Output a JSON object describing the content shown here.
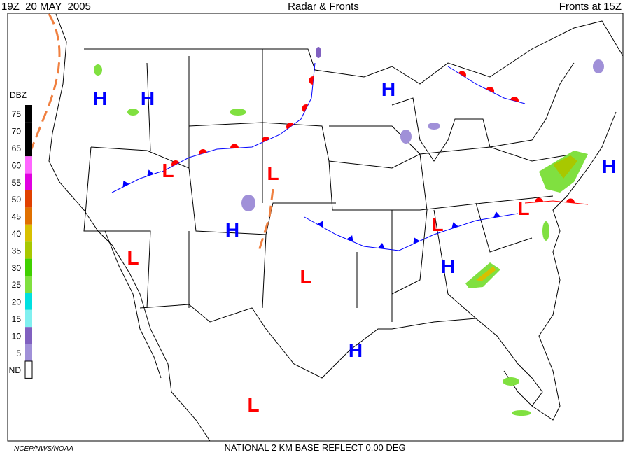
{
  "header": {
    "left": "19Z  20 MAY  2005",
    "center": "Radar & Fronts",
    "right": "Fronts at 15Z"
  },
  "legend": {
    "title": "DBZ",
    "items": [
      {
        "label": "75",
        "color": "#000000"
      },
      {
        "label": "70",
        "color": "#000000"
      },
      {
        "label": "65",
        "color": "#000000"
      },
      {
        "label": "60",
        "color": "#ff66ff"
      },
      {
        "label": "55",
        "color": "#e000e0"
      },
      {
        "label": "50",
        "color": "#e04000"
      },
      {
        "label": "45",
        "color": "#e07000"
      },
      {
        "label": "40",
        "color": "#d8c000"
      },
      {
        "label": "35",
        "color": "#a8c800"
      },
      {
        "label": "30",
        "color": "#40d000"
      },
      {
        "label": "25",
        "color": "#80e040"
      },
      {
        "label": "20",
        "color": "#00e0e0"
      },
      {
        "label": "15",
        "color": "#80f0f0"
      },
      {
        "label": "10",
        "color": "#8060c0"
      },
      {
        "label": "5",
        "color": "#a090d8"
      },
      {
        "label": "ND",
        "color": "#ffffff"
      }
    ]
  },
  "pressure_centers": [
    {
      "label": "H",
      "color": "#0000ff"
    },
    {
      "label": "H",
      "color": "#0000ff"
    },
    {
      "label": "H",
      "color": "#0000ff"
    },
    {
      "label": "H",
      "color": "#0000ff"
    },
    {
      "label": "H",
      "color": "#0000ff"
    },
    {
      "label": "H",
      "color": "#0000ff"
    },
    {
      "label": "H",
      "color": "#0000ff"
    },
    {
      "label": "L",
      "color": "#ff0000"
    },
    {
      "label": "L",
      "color": "#ff0000"
    },
    {
      "label": "L",
      "color": "#ff0000"
    },
    {
      "label": "L",
      "color": "#ff0000"
    },
    {
      "label": "L",
      "color": "#ff0000"
    },
    {
      "label": "L",
      "color": "#ff0000"
    },
    {
      "label": "L",
      "color": "#ff0000"
    }
  ],
  "footer": {
    "source": "NCEP/NWS/NOAA",
    "product": "NATIONAL 2 KM BASE REFLECT 0.00 DEG"
  }
}
